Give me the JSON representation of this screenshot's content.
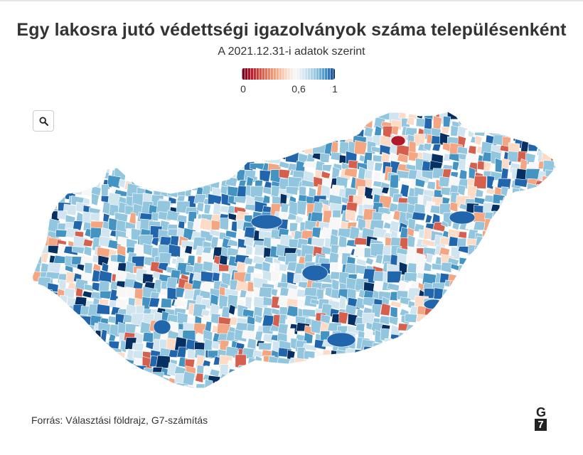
{
  "title": "Egy lakosra jutó védettségi igazolványok száma településenként",
  "subtitle": "A 2021.12.31-i adatok szerint",
  "legend": {
    "ticks": [
      {
        "label": "0",
        "value": 0
      },
      {
        "label": "0,6",
        "value": 0.6
      },
      {
        "label": "1",
        "value": 1
      }
    ],
    "min": 0,
    "max": 1,
    "colors": [
      "#67001f",
      "#b2182b",
      "#d6604d",
      "#f4a582",
      "#fddbc7",
      "#f7f7f7",
      "#d1e5f0",
      "#92c5de",
      "#4393c3",
      "#2166ac",
      "#053061"
    ]
  },
  "source": "Forrás: Választási földrajz, G7-számítás",
  "logo": {
    "top": "G",
    "bottom": "7"
  },
  "icons": {
    "search": "search-icon"
  }
}
